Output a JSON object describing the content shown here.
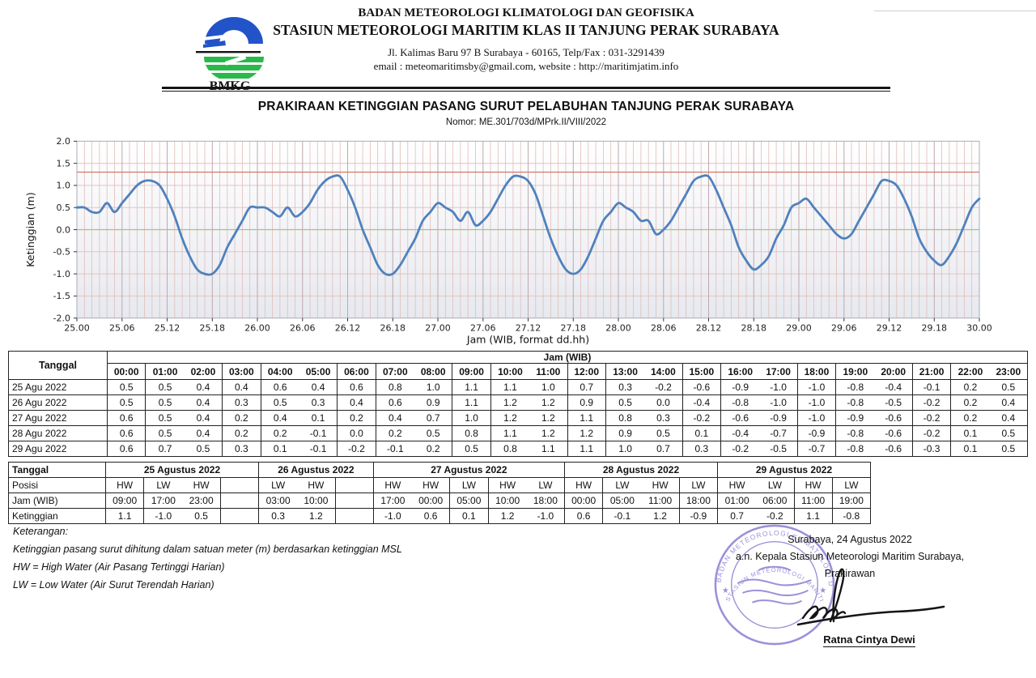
{
  "header": {
    "agency_line1": "BADAN METEOROLOGI KLIMATOLOGI DAN GEOFISIKA",
    "agency_line2": "STASIUN METEOROLOGI MARITIM KLAS II TANJUNG PERAK SURABAYA",
    "address_line1": "Jl. Kalimas Baru 97 B Surabaya - 60165, Telp/Fax : 031-3291439",
    "address_line2": "email : meteomaritimsby@gmail.com, website : http://maritimjatim.info",
    "logo_text": "BMKG"
  },
  "title": {
    "main": "PRAKIRAAN KETINGGIAN PASANG SURUT PELABUHAN TANJUNG PERAK SURABAYA",
    "nomor": "Nomor: ME.301/703d/MPrk.II/VIII/2022"
  },
  "chart_data": {
    "type": "line",
    "title": "",
    "xlabel": "Jam (WIB, format dd.hh)",
    "ylabel": "Ketinggian (m)",
    "ylim": [
      -2.0,
      2.0
    ],
    "y_ticks": [
      2.0,
      1.5,
      1.0,
      0.5,
      0.0,
      -0.5,
      -1.0,
      -1.5,
      -2.0
    ],
    "x_ticks": [
      "25.00",
      "25.06",
      "25.12",
      "25.18",
      "26.00",
      "26.06",
      "26.12",
      "26.18",
      "27.00",
      "27.06",
      "27.12",
      "27.18",
      "28.00",
      "28.06",
      "28.12",
      "28.18",
      "29.00",
      "29.06",
      "29.12",
      "29.18",
      "30.00"
    ],
    "x_format": "dd.hh (hourly points from 25.00 to 30.00)",
    "grid": "hourly vertical pink lines, 0.5 m horizontal pink lines",
    "legend_position": "none",
    "reference_lines": [
      {
        "name": "high-threshold",
        "value": 1.3
      },
      {
        "name": "mean-sea-level",
        "value": 0.0
      }
    ],
    "series": [
      {
        "name": "Ketinggian (m)",
        "values": [
          0.5,
          0.5,
          0.4,
          0.4,
          0.6,
          0.4,
          0.6,
          0.8,
          1.0,
          1.1,
          1.1,
          1.0,
          0.7,
          0.3,
          -0.2,
          -0.6,
          -0.9,
          -1.0,
          -1.0,
          -0.8,
          -0.4,
          -0.1,
          0.2,
          0.5,
          0.5,
          0.5,
          0.4,
          0.3,
          0.5,
          0.3,
          0.4,
          0.6,
          0.9,
          1.1,
          1.2,
          1.2,
          0.9,
          0.5,
          0.0,
          -0.4,
          -0.8,
          -1.0,
          -1.0,
          -0.8,
          -0.5,
          -0.2,
          0.2,
          0.4,
          0.6,
          0.5,
          0.4,
          0.2,
          0.4,
          0.1,
          0.2,
          0.4,
          0.7,
          1.0,
          1.2,
          1.2,
          1.1,
          0.8,
          0.3,
          -0.2,
          -0.6,
          -0.9,
          -1.0,
          -0.9,
          -0.6,
          -0.2,
          0.2,
          0.4,
          0.6,
          0.5,
          0.4,
          0.2,
          0.2,
          -0.1,
          0.0,
          0.2,
          0.5,
          0.8,
          1.1,
          1.2,
          1.2,
          0.9,
          0.5,
          0.1,
          -0.4,
          -0.7,
          -0.9,
          -0.8,
          -0.6,
          -0.2,
          0.1,
          0.5,
          0.6,
          0.7,
          0.5,
          0.3,
          0.1,
          -0.1,
          -0.2,
          -0.1,
          0.2,
          0.5,
          0.8,
          1.1,
          1.1,
          1.0,
          0.7,
          0.3,
          -0.2,
          -0.5,
          -0.7,
          -0.8,
          -0.6,
          -0.3,
          0.1,
          0.5,
          0.7
        ]
      }
    ]
  },
  "hourly_table": {
    "corner_label": "Tanggal",
    "group_header": "Jam (WIB)",
    "hours": [
      "00:00",
      "01:00",
      "02:00",
      "03:00",
      "04:00",
      "05:00",
      "06:00",
      "07:00",
      "08:00",
      "09:00",
      "10:00",
      "11:00",
      "12:00",
      "13:00",
      "14:00",
      "15:00",
      "16:00",
      "17:00",
      "18:00",
      "19:00",
      "20:00",
      "21:00",
      "22:00",
      "23:00"
    ],
    "rows": [
      {
        "date": "25 Agu 2022",
        "values": [
          "0.5",
          "0.5",
          "0.4",
          "0.4",
          "0.6",
          "0.4",
          "0.6",
          "0.8",
          "1.0",
          "1.1",
          "1.1",
          "1.0",
          "0.7",
          "0.3",
          "-0.2",
          "-0.6",
          "-0.9",
          "-1.0",
          "-1.0",
          "-0.8",
          "-0.4",
          "-0.1",
          "0.2",
          "0.5"
        ]
      },
      {
        "date": "26 Agu 2022",
        "values": [
          "0.5",
          "0.5",
          "0.4",
          "0.3",
          "0.5",
          "0.3",
          "0.4",
          "0.6",
          "0.9",
          "1.1",
          "1.2",
          "1.2",
          "0.9",
          "0.5",
          "0.0",
          "-0.4",
          "-0.8",
          "-1.0",
          "-1.0",
          "-0.8",
          "-0.5",
          "-0.2",
          "0.2",
          "0.4"
        ]
      },
      {
        "date": "27 Agu 2022",
        "values": [
          "0.6",
          "0.5",
          "0.4",
          "0.2",
          "0.4",
          "0.1",
          "0.2",
          "0.4",
          "0.7",
          "1.0",
          "1.2",
          "1.2",
          "1.1",
          "0.8",
          "0.3",
          "-0.2",
          "-0.6",
          "-0.9",
          "-1.0",
          "-0.9",
          "-0.6",
          "-0.2",
          "0.2",
          "0.4"
        ]
      },
      {
        "date": "28 Agu 2022",
        "values": [
          "0.6",
          "0.5",
          "0.4",
          "0.2",
          "0.2",
          "-0.1",
          "0.0",
          "0.2",
          "0.5",
          "0.8",
          "1.1",
          "1.2",
          "1.2",
          "0.9",
          "0.5",
          "0.1",
          "-0.4",
          "-0.7",
          "-0.9",
          "-0.8",
          "-0.6",
          "-0.2",
          "0.1",
          "0.5"
        ]
      },
      {
        "date": "29 Agu 2022",
        "values": [
          "0.6",
          "0.7",
          "0.5",
          "0.3",
          "0.1",
          "-0.1",
          "-0.2",
          "-0.1",
          "0.2",
          "0.5",
          "0.8",
          "1.1",
          "1.1",
          "1.0",
          "0.7",
          "0.3",
          "-0.2",
          "-0.5",
          "-0.7",
          "-0.8",
          "-0.6",
          "-0.3",
          "0.1",
          "0.5"
        ]
      }
    ]
  },
  "extremes_table": {
    "row_labels": {
      "tanggal": "Tanggal",
      "posisi": "Posisi",
      "jam": "Jam (WIB)",
      "ketinggian": "Ketinggian"
    },
    "groups": [
      {
        "date": "25 Agustus 2022",
        "cols": [
          {
            "pos": "HW",
            "jam": "09:00",
            "h": "1.1"
          },
          {
            "pos": "LW",
            "jam": "17:00",
            "h": "-1.0"
          },
          {
            "pos": "HW",
            "jam": "23:00",
            "h": "0.5"
          },
          {
            "pos": "",
            "jam": "",
            "h": ""
          }
        ]
      },
      {
        "date": "26 Agustus 2022",
        "cols": [
          {
            "pos": "LW",
            "jam": "03:00",
            "h": "0.3"
          },
          {
            "pos": "HW",
            "jam": "10:00",
            "h": "1.2"
          },
          {
            "pos": "",
            "jam": "",
            "h": ""
          }
        ]
      },
      {
        "date": "27 Agustus 2022",
        "cols": [
          {
            "pos": "HW",
            "jam": "17:00",
            "h": "-1.0"
          },
          {
            "pos": "HW",
            "jam": "00:00",
            "h": "0.6"
          },
          {
            "pos": "LW",
            "jam": "05:00",
            "h": "0.1"
          },
          {
            "pos": "HW",
            "jam": "10:00",
            "h": "1.2"
          },
          {
            "pos": "LW",
            "jam": "18:00",
            "h": "-1.0"
          }
        ]
      },
      {
        "date": "28 Agustus 2022",
        "cols": [
          {
            "pos": "HW",
            "jam": "00:00",
            "h": "0.6"
          },
          {
            "pos": "LW",
            "jam": "05:00",
            "h": "-0.1"
          },
          {
            "pos": "HW",
            "jam": "11:00",
            "h": "1.2"
          },
          {
            "pos": "LW",
            "jam": "18:00",
            "h": "-0.9"
          }
        ]
      },
      {
        "date": "29 Agustus 2022",
        "cols": [
          {
            "pos": "HW",
            "jam": "01:00",
            "h": "0.7"
          },
          {
            "pos": "LW",
            "jam": "06:00",
            "h": "-0.2"
          },
          {
            "pos": "HW",
            "jam": "11:00",
            "h": "1.1"
          },
          {
            "pos": "LW",
            "jam": "19:00",
            "h": "-0.8"
          }
        ]
      }
    ]
  },
  "notes": {
    "heading": "Keterangan:",
    "lines": [
      "Ketinggian pasang surut dihitung dalam satuan meter (m) berdasarkan ketinggian MSL",
      "HW = High Water (Air Pasang Tertinggi Harian)",
      "LW = Low Water (Air Surut Terendah Harian)"
    ]
  },
  "signature": {
    "place_date": "Surabaya, 24 Agustus 2022",
    "authority_line": "a.n. Kepala Stasiun Meteorologi Maritim Surabaya,",
    "role": "Prakirawan",
    "name": "Ratna Cintya Dewi"
  },
  "stamp": {
    "ring_top": "BADAN METEOROLOGI KLIMATOLOGI DAN GEOFISIKA",
    "ring_bottom": "STASIUN METEOROLOGI MARITIM TANJUNG PERAK"
  },
  "colors": {
    "curve": "#4f81bd",
    "grid_hour": "#e3bcb8",
    "grid_6h": "#c2a7ab",
    "grid_h": "#e7c3c0",
    "ref_high": "#d4776b",
    "ref_zero": "#a9c08b",
    "plot_border": "#a7adb5",
    "stamp": "#8474d0",
    "logo_blue": "#2353c8",
    "logo_green": "#28b94a"
  }
}
